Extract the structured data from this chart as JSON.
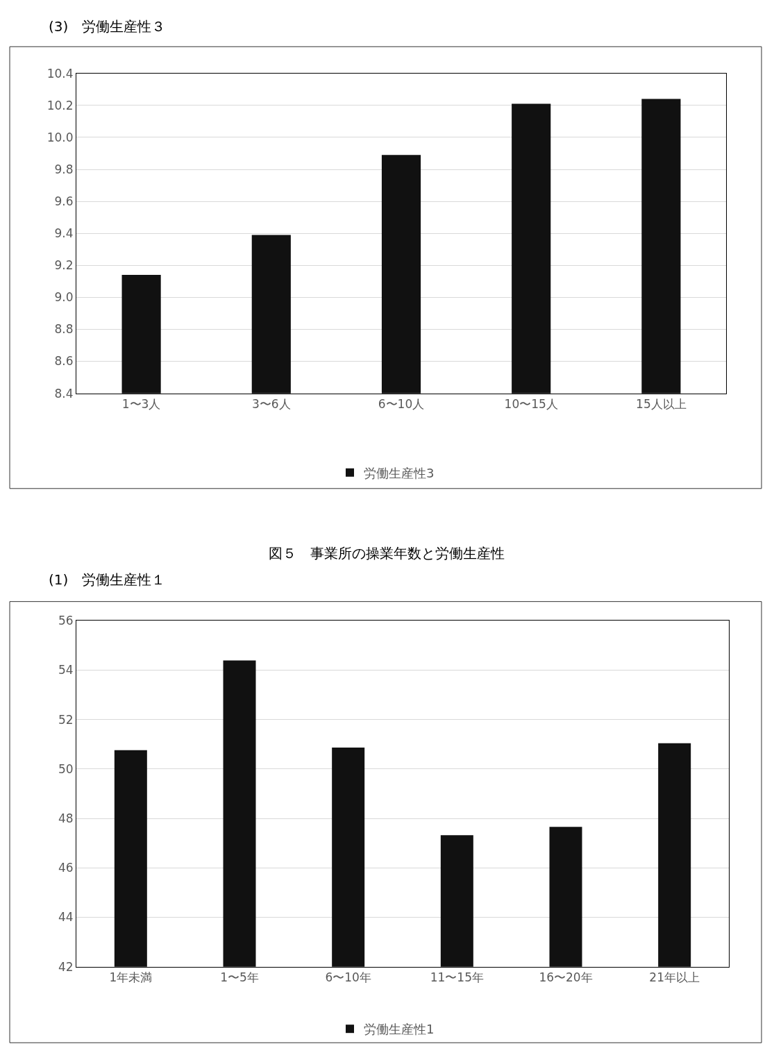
{
  "chart_data": [
    {
      "type": "bar",
      "title": "(3)　労働生産性３",
      "categories": [
        "1〜3人",
        "3〜6人",
        "6〜10人",
        "10〜15人",
        "15人以上"
      ],
      "series": [
        {
          "name": "労働生産性3",
          "color": "#111111",
          "values": [
            9.14,
            9.39,
            9.89,
            10.21,
            10.24
          ]
        }
      ],
      "ylim": [
        8.4,
        10.4
      ],
      "yticks": [
        8.4,
        8.6,
        8.8,
        {
          "value": 9.0,
          "label": "9.0"
        },
        9.2,
        9.4,
        9.6,
        9.8,
        {
          "value": 10.0,
          "label": "10.0"
        },
        10.2,
        10.4
      ],
      "grid": "y",
      "legend": "bottom"
    },
    {
      "type": "bar",
      "title": "図５　事業所の操業年数と労働生産性",
      "subtitle": "(1)　労働生産性１",
      "categories": [
        "1年未満",
        "1〜5年",
        "6〜10年",
        "11〜15年",
        "16〜20年",
        "21年以上"
      ],
      "series": [
        {
          "name": "労働生産性1",
          "color": "#111111",
          "values": [
            50.76,
            54.39,
            50.87,
            47.32,
            47.66,
            51.04
          ]
        }
      ],
      "ylim": [
        42,
        56
      ],
      "yticks": [
        42,
        44,
        46,
        48,
        50,
        52,
        54,
        56
      ],
      "grid": "y",
      "legend": "bottom"
    }
  ]
}
